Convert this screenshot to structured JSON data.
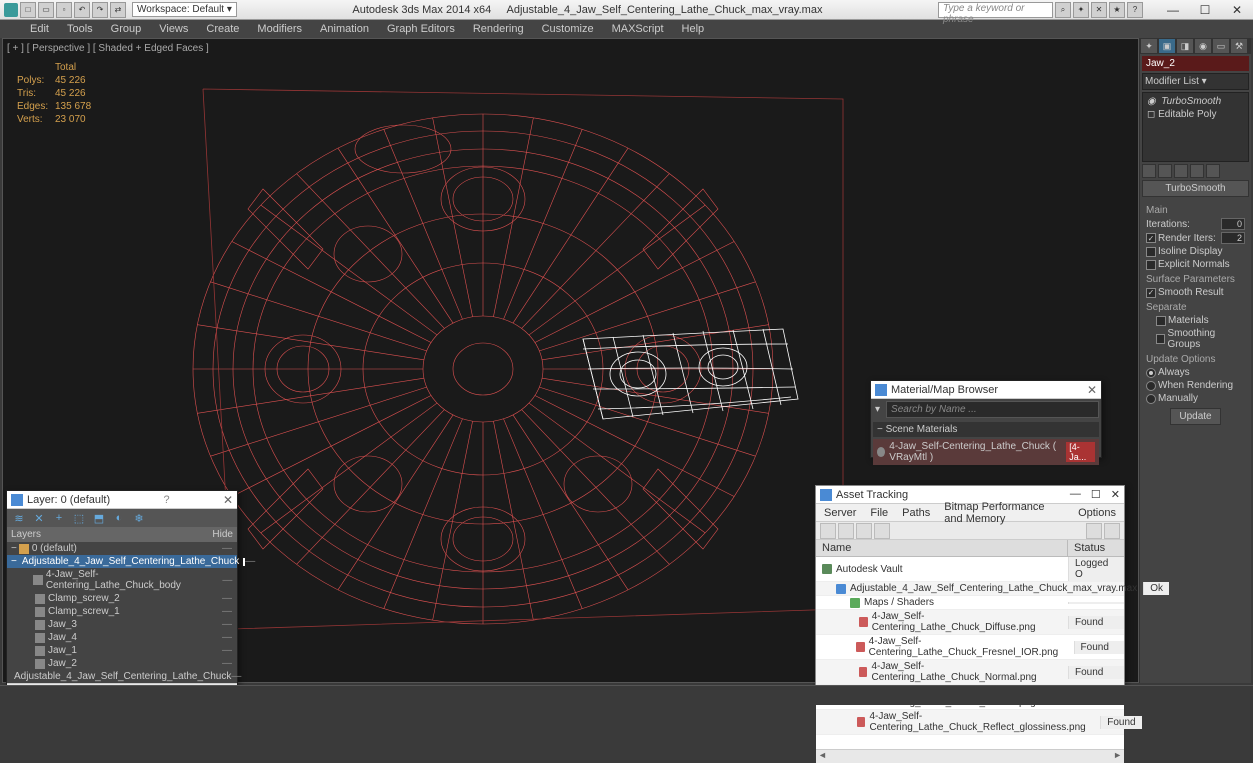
{
  "titlebar": {
    "app": "Autodesk 3ds Max  2014 x64",
    "file": "Adjustable_4_Jaw_Self_Centering_Lathe_Chuck_max_vray.max",
    "workspace_label": "Workspace: Default",
    "search_placeholder": "Type a keyword or phrase"
  },
  "menubar": [
    "Edit",
    "Tools",
    "Group",
    "Views",
    "Create",
    "Modifiers",
    "Animation",
    "Graph Editors",
    "Rendering",
    "Customize",
    "MAXScript",
    "Help"
  ],
  "viewport": {
    "label": "[ + ] [ Perspective ] [ Shaded + Edged Faces ]",
    "stats_header": "Total",
    "stats": [
      {
        "label": "Polys:",
        "value": "45 226"
      },
      {
        "label": "Tris:",
        "value": "45 226"
      },
      {
        "label": "Edges:",
        "value": "135 678"
      },
      {
        "label": "Verts:",
        "value": "23 070"
      }
    ],
    "wireframe_color": "#ff5a5a",
    "wireframe_highlight": "#ffffff",
    "bg": "#1a1a1a"
  },
  "cmd_panel": {
    "object_name": "Jaw_2",
    "modifier_dropdown": "Modifier List",
    "stack": [
      "TurboSmooth",
      "Editable Poly"
    ],
    "turbosmooth": {
      "title": "TurboSmooth",
      "main_label": "Main",
      "iterations_label": "Iterations:",
      "iterations": "0",
      "render_iters_label": "Render Iters:",
      "render_iters": "2",
      "render_iters_checked": true,
      "isoline_label": "Isoline Display",
      "explicit_label": "Explicit Normals",
      "surface_params_label": "Surface Parameters",
      "smooth_result_label": "Smooth Result",
      "smooth_result_checked": true,
      "separate_label": "Separate",
      "materials_label": "Materials",
      "smoothing_groups_label": "Smoothing Groups",
      "update_options_label": "Update Options",
      "update_always": "Always",
      "update_rendering": "When Rendering",
      "update_manually": "Manually",
      "update_selected": "always",
      "update_btn": "Update"
    }
  },
  "layer_panel": {
    "title": "Layer: 0 (default)",
    "col_layers": "Layers",
    "col_hide": "Hide",
    "rows": [
      {
        "indent": 0,
        "icon": "#d4a04d",
        "name": "0 (default)",
        "expand": "−"
      },
      {
        "indent": 1,
        "icon": "#6aa0d4",
        "name": "Adjustable_4_Jaw_Self_Centering_Lathe_Chuck",
        "selected": true,
        "expand": "−",
        "box": true
      },
      {
        "indent": 2,
        "icon": "#888",
        "name": "4-Jaw_Self-Centering_Lathe_Chuck_body"
      },
      {
        "indent": 2,
        "icon": "#888",
        "name": "Clamp_screw_2"
      },
      {
        "indent": 2,
        "icon": "#888",
        "name": "Clamp_screw_1"
      },
      {
        "indent": 2,
        "icon": "#888",
        "name": "Jaw_3"
      },
      {
        "indent": 2,
        "icon": "#888",
        "name": "Jaw_4"
      },
      {
        "indent": 2,
        "icon": "#888",
        "name": "Jaw_1"
      },
      {
        "indent": 2,
        "icon": "#888",
        "name": "Jaw_2"
      },
      {
        "indent": 2,
        "icon": "#888",
        "name": "Adjustable_4_Jaw_Self_Centering_Lathe_Chuck"
      }
    ]
  },
  "asset_panel": {
    "title": "Asset Tracking",
    "menu": [
      "Server",
      "File",
      "Paths",
      "Bitmap Performance and Memory",
      "Options"
    ],
    "col_name": "Name",
    "col_status": "Status",
    "rows": [
      {
        "indent": 0,
        "icon": "#5a8a5a",
        "name": "Autodesk Vault",
        "status": "Logged O"
      },
      {
        "indent": 1,
        "icon": "#4a8ad4",
        "name": "Adjustable_4_Jaw_Self_Centering_Lathe_Chuck_max_vray.max",
        "status": "Ok"
      },
      {
        "indent": 2,
        "icon": "#5aaa5a",
        "name": "Maps / Shaders",
        "status": ""
      },
      {
        "indent": 3,
        "icon": "#cc5a5a",
        "name": "4-Jaw_Self-Centering_Lathe_Chuck_Diffuse.png",
        "status": "Found"
      },
      {
        "indent": 3,
        "icon": "#cc5a5a",
        "name": "4-Jaw_Self-Centering_Lathe_Chuck_Fresnel_IOR.png",
        "status": "Found"
      },
      {
        "indent": 3,
        "icon": "#cc5a5a",
        "name": "4-Jaw_Self-Centering_Lathe_Chuck_Normal.png",
        "status": "Found"
      },
      {
        "indent": 3,
        "icon": "#cc5a5a",
        "name": "4-Jaw_Self-Centering_Lathe_Chuck_Reflect.png",
        "status": "Found"
      },
      {
        "indent": 3,
        "icon": "#cc5a5a",
        "name": "4-Jaw_Self-Centering_Lathe_Chuck_Reflect_glossiness.png",
        "status": "Found"
      }
    ]
  },
  "mat_browser": {
    "title": "Material/Map Browser",
    "search_placeholder": "Search by Name ...",
    "section": "− Scene Materials",
    "item": "4-Jaw_Self-Centering_Lathe_Chuck  ( VRayMtl )",
    "badge": "[4-Ja..."
  }
}
